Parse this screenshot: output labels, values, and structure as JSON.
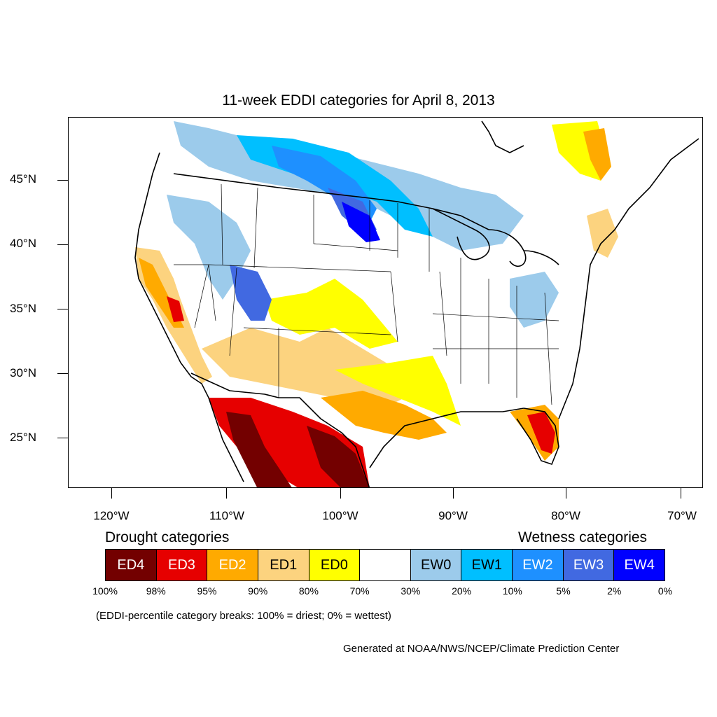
{
  "title": "11-week EDDI categories for April 8, 2013",
  "lat_labels": [
    "45°N",
    "40°N",
    "35°N",
    "30°N",
    "25°N"
  ],
  "lon_labels": [
    "120°W",
    "110°W",
    "100°W",
    "90°W",
    "80°W",
    "70°W"
  ],
  "legend": {
    "drought_heading": "Drought categories",
    "wetness_heading": "Wetness categories",
    "categories": [
      {
        "label": "ED4",
        "color": "#730000",
        "text_color": "#ffffff"
      },
      {
        "label": "ED3",
        "color": "#e60000",
        "text_color": "#ffffff"
      },
      {
        "label": "ED2",
        "color": "#ffaa00",
        "text_color": "#ffffff"
      },
      {
        "label": "ED1",
        "color": "#fcd37f",
        "text_color": "#000000"
      },
      {
        "label": "ED0",
        "color": "#ffff00",
        "text_color": "#000000"
      },
      {
        "label": "",
        "color": "#ffffff",
        "text_color": "#000000"
      },
      {
        "label": "EW0",
        "color": "#9ccbeb",
        "text_color": "#000000"
      },
      {
        "label": "EW1",
        "color": "#00bfff",
        "text_color": "#000000"
      },
      {
        "label": "EW2",
        "color": "#1e90ff",
        "text_color": "#ffffff"
      },
      {
        "label": "EW3",
        "color": "#4169e1",
        "text_color": "#ffffff"
      },
      {
        "label": "EW4",
        "color": "#0000ff",
        "text_color": "#ffffff"
      }
    ],
    "percentiles": [
      "100%",
      "98%",
      "95%",
      "90%",
      "80%",
      "70%",
      "30%",
      "20%",
      "10%",
      "5%",
      "2%",
      "0%"
    ]
  },
  "note": "(EDDI-percentile category breaks: 100% = driest; 0% = wettest)",
  "credit": "Generated at NOAA/NWS/NCEP/Climate Prediction Center"
}
